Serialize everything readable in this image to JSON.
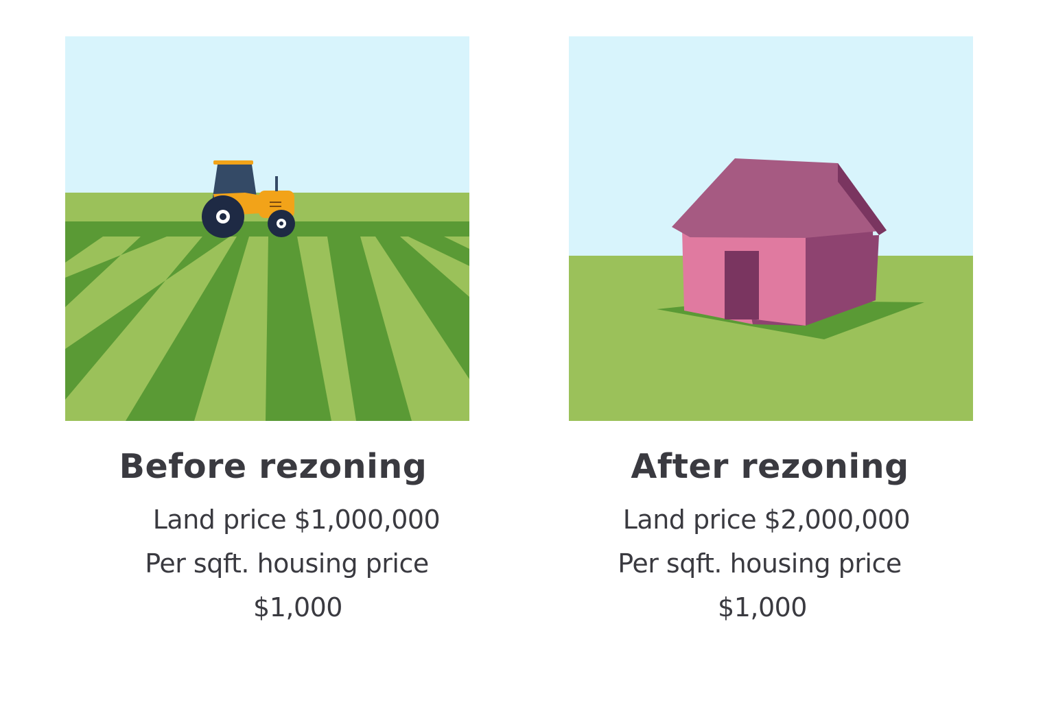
{
  "colors": {
    "sky": "#d8f4fc",
    "grass_light": "#9bc15a",
    "grass_dark": "#5a9a35",
    "tractor_body": "#f2a319",
    "tractor_cab": "#344a66",
    "wheel": "#1e2a44",
    "house_front": "#e07aa0",
    "house_side": "#8e4370",
    "house_roof": "#a65a82",
    "house_door": "#7a3560",
    "text": "#3a3a40"
  },
  "panels": [
    {
      "heading": "Before rezoning",
      "land_price": "Land price $1,000,000",
      "sqft_label": "Per sqft. housing price",
      "sqft_price": "$1,000",
      "illustration_icon": "tractor-farmland-icon"
    },
    {
      "heading": "After rezoning",
      "land_price": "Land price $2,000,000",
      "sqft_label": "Per sqft. housing price",
      "sqft_price": "$1,000",
      "illustration_icon": "house-icon"
    }
  ]
}
